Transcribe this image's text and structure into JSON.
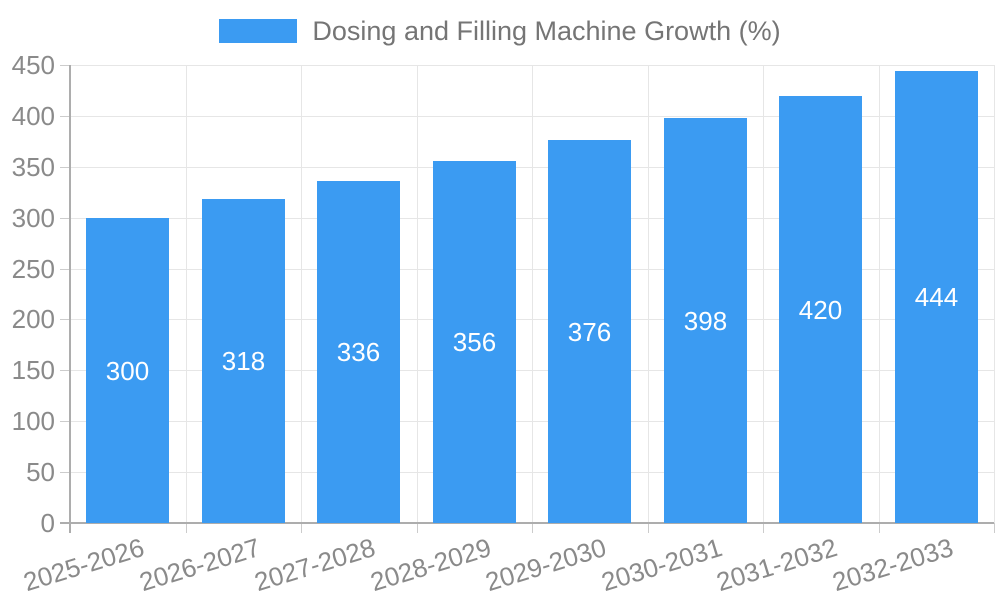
{
  "legend": {
    "label": "Dosing and Filling Machine Growth (%)"
  },
  "colors": {
    "bar": "#3B9BF2",
    "bar_label": "#FFFFFF",
    "legend_text": "#757575",
    "tick_text": "#8A8A8A",
    "grid": "#E6E6E6",
    "tick_mark": "#CCCCCC",
    "axis": "#ADADAD",
    "background": "#FFFFFF"
  },
  "chart_data": {
    "type": "bar",
    "title": "Dosing and Filling Machine Growth (%)",
    "categories": [
      "2025-2026",
      "2026-2027",
      "2027-2028",
      "2028-2029",
      "2029-2030",
      "2030-2031",
      "2031-2032",
      "2032-2033"
    ],
    "values": [
      300,
      318,
      336,
      356,
      376,
      398,
      420,
      444
    ],
    "xlabel": "",
    "ylabel": "",
    "ylim": [
      0,
      450
    ],
    "ytick_step": 50,
    "grid": true,
    "legend_position": "top",
    "bar_labels": "inside-middle",
    "x_label_rotation_deg": -17
  }
}
